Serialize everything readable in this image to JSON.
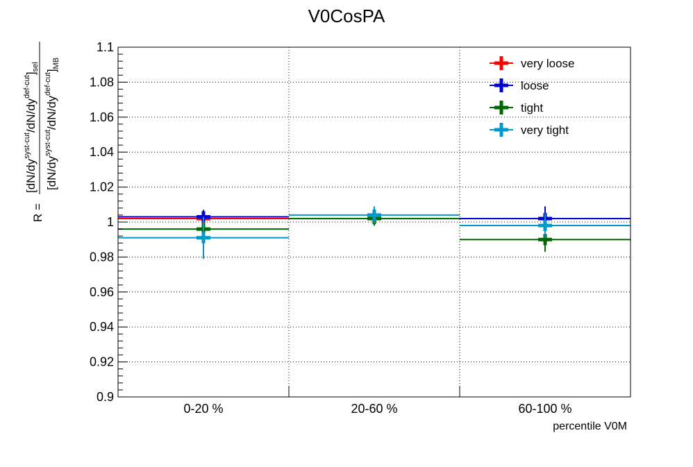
{
  "chart_data": {
    "type": "scatter",
    "title": "V0CosPA",
    "xlabel": "percentile V0M",
    "ylabel": {
      "prefix": "R =",
      "numerator": "[dN/dy",
      "num_sup1": "syst-cut",
      "num_mid": "/dN/dy",
      "num_sup2": "def-cut",
      "num_end": "]",
      "num_sub": "sel",
      "denominator": "[dN/dy",
      "den_sup1": "syst-cut",
      "den_mid": "/dN/dy",
      "den_sup2": "def-cut",
      "den_end": "]",
      "den_sub": "MB"
    },
    "categories": [
      "0-20 %",
      "20-60 %",
      "60-100 %"
    ],
    "ylim": [
      0.9,
      1.1
    ],
    "yticks": [
      "0.9",
      "0.92",
      "0.94",
      "0.96",
      "0.98",
      "1",
      "1.02",
      "1.04",
      "1.06",
      "1.08",
      "1.1"
    ],
    "grid": true,
    "legend_position": "top-right",
    "series": [
      {
        "name": "very loose",
        "color": "#ff0000",
        "values": [
          1.002,
          1.002,
          1.002
        ],
        "errors": [
          0.003,
          0.004,
          0.004
        ]
      },
      {
        "name": "loose",
        "color": "#0000cc",
        "values": [
          1.003,
          1.002,
          1.002
        ],
        "errors": [
          0.004,
          0.004,
          0.007
        ]
      },
      {
        "name": "tight",
        "color": "#006600",
        "values": [
          0.996,
          1.002,
          0.99
        ],
        "errors": [
          0.005,
          0.004,
          0.007
        ]
      },
      {
        "name": "very tight",
        "color": "#0099cc",
        "values": [
          0.991,
          1.004,
          0.998
        ],
        "errors": [
          0.012,
          0.005,
          0.007
        ]
      }
    ]
  }
}
